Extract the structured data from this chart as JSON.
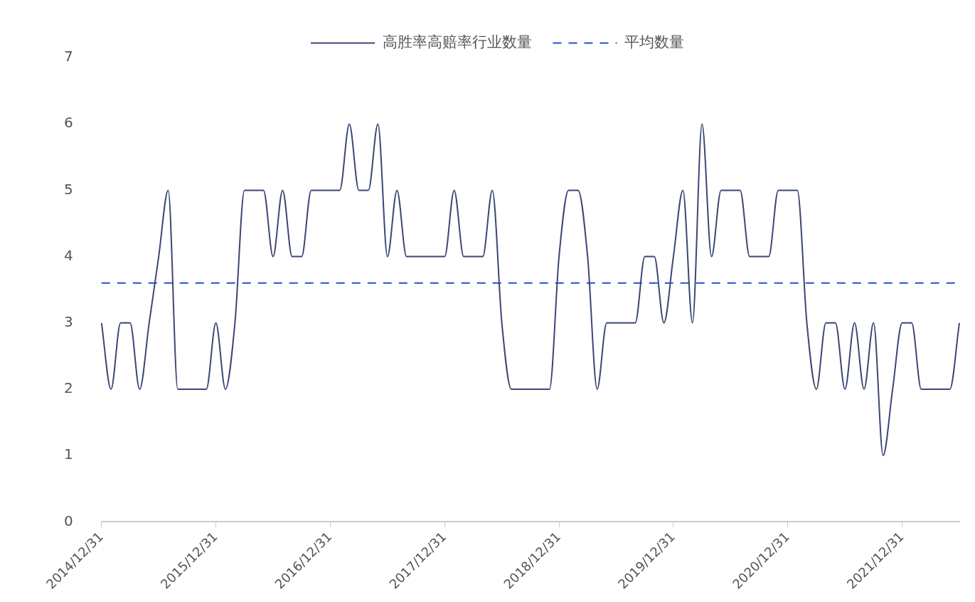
{
  "chart_data": {
    "type": "line",
    "categories": [
      "2014/12/31",
      null,
      null,
      null,
      null,
      null,
      null,
      null,
      null,
      null,
      null,
      null,
      "2015/12/31",
      null,
      null,
      null,
      null,
      null,
      null,
      null,
      null,
      null,
      null,
      null,
      "2016/12/31",
      null,
      null,
      null,
      null,
      null,
      null,
      null,
      null,
      null,
      null,
      null,
      "2017/12/31",
      null,
      null,
      null,
      null,
      null,
      null,
      null,
      null,
      null,
      null,
      null,
      "2018/12/31",
      null,
      null,
      null,
      null,
      null,
      null,
      null,
      null,
      null,
      null,
      null,
      "2019/12/31",
      null,
      null,
      null,
      null,
      null,
      null,
      null,
      null,
      null,
      null,
      null,
      "2020/12/31",
      null,
      null,
      null,
      null,
      null,
      null,
      null,
      null,
      null,
      null,
      null,
      "2021/12/31",
      null,
      null,
      null,
      null,
      null,
      null
    ],
    "series": [
      {
        "name": "高胜率高赔率行业数量",
        "color": "#3b4677",
        "values": [
          3,
          2,
          3,
          3,
          2,
          3,
          4,
          5,
          2,
          2,
          2,
          2,
          3,
          2,
          3,
          5,
          5,
          5,
          4,
          5,
          4,
          4,
          5,
          5,
          5,
          5,
          6,
          5,
          5,
          6,
          4,
          5,
          4,
          4,
          4,
          4,
          4,
          5,
          4,
          4,
          4,
          5,
          3,
          2,
          2,
          2,
          2,
          2,
          4,
          5,
          5,
          4,
          2,
          3,
          3,
          3,
          3,
          4,
          4,
          3,
          4,
          5,
          3,
          6,
          4,
          5,
          5,
          5,
          4,
          4,
          4,
          5,
          5,
          5,
          3,
          2,
          3,
          3,
          2,
          3,
          2,
          3,
          1,
          2,
          3,
          3,
          2,
          2,
          2,
          2,
          3
        ]
      },
      {
        "name": "平均数量",
        "color": "#1f4fd8",
        "line_style": "dashed",
        "values": [
          3.6,
          3.6,
          3.6,
          3.6,
          3.6,
          3.6,
          3.6,
          3.6,
          3.6,
          3.6,
          3.6,
          3.6,
          3.6,
          3.6,
          3.6,
          3.6,
          3.6,
          3.6,
          3.6,
          3.6,
          3.6,
          3.6,
          3.6,
          3.6,
          3.6,
          3.6,
          3.6,
          3.6,
          3.6,
          3.6,
          3.6,
          3.6,
          3.6,
          3.6,
          3.6,
          3.6,
          3.6,
          3.6,
          3.6,
          3.6,
          3.6,
          3.6,
          3.6,
          3.6,
          3.6,
          3.6,
          3.6,
          3.6,
          3.6,
          3.6,
          3.6,
          3.6,
          3.6,
          3.6,
          3.6,
          3.6,
          3.6,
          3.6,
          3.6,
          3.6,
          3.6,
          3.6,
          3.6,
          3.6,
          3.6,
          3.6,
          3.6,
          3.6,
          3.6,
          3.6,
          3.6,
          3.6,
          3.6,
          3.6,
          3.6,
          3.6,
          3.6,
          3.6,
          3.6,
          3.6,
          3.6,
          3.6,
          3.6,
          3.6,
          3.6,
          3.6,
          3.6,
          3.6,
          3.6,
          3.6,
          3.6
        ]
      }
    ],
    "ylim": [
      0,
      7
    ],
    "yticks": [
      0,
      1,
      2,
      3,
      4,
      5,
      6,
      7
    ],
    "grid": false,
    "legend": "top",
    "marker": "none",
    "line_style": "solid"
  }
}
